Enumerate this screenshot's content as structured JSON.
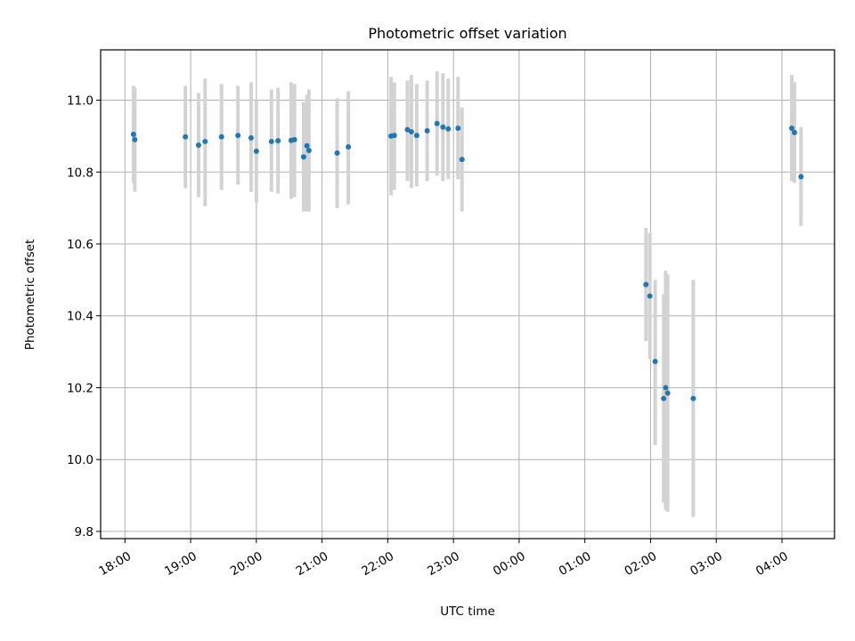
{
  "chart_data": {
    "type": "scatter",
    "title": "Photometric offset variation",
    "xlabel": "UTC time",
    "ylabel": "Photometric offset",
    "x_unit": "UTC hour",
    "x_ticks": [
      {
        "value": 18,
        "label": "18:00"
      },
      {
        "value": 19,
        "label": "19:00"
      },
      {
        "value": 20,
        "label": "20:00"
      },
      {
        "value": 21,
        "label": "21:00"
      },
      {
        "value": 22,
        "label": "22:00"
      },
      {
        "value": 23,
        "label": "23:00"
      },
      {
        "value": 24,
        "label": "00:00"
      },
      {
        "value": 25,
        "label": "01:00"
      },
      {
        "value": 26,
        "label": "02:00"
      },
      {
        "value": 27,
        "label": "03:00"
      },
      {
        "value": 28,
        "label": "04:00"
      }
    ],
    "y_ticks": [
      {
        "value": 9.8,
        "label": "9.8"
      },
      {
        "value": 10.0,
        "label": "10.0"
      },
      {
        "value": 10.2,
        "label": "10.2"
      },
      {
        "value": 10.4,
        "label": "10.4"
      },
      {
        "value": 10.6,
        "label": "10.6"
      },
      {
        "value": 10.8,
        "label": "10.8"
      },
      {
        "value": 11.0,
        "label": "11.0"
      }
    ],
    "xlim": [
      17.63,
      28.8
    ],
    "ylim": [
      9.78,
      11.14
    ],
    "grid": true,
    "marker_color": "#1f77b4",
    "errorbar_color": "#d3d3d3",
    "points": [
      {
        "x": 18.13,
        "y": 10.905,
        "lo": 10.77,
        "hi": 11.04
      },
      {
        "x": 18.15,
        "y": 10.89,
        "lo": 10.745,
        "hi": 11.035
      },
      {
        "x": 18.92,
        "y": 10.898,
        "lo": 10.755,
        "hi": 11.04
      },
      {
        "x": 19.12,
        "y": 10.875,
        "lo": 10.73,
        "hi": 11.02
      },
      {
        "x": 19.22,
        "y": 10.885,
        "lo": 10.705,
        "hi": 11.06
      },
      {
        "x": 19.47,
        "y": 10.898,
        "lo": 10.75,
        "hi": 11.045
      },
      {
        "x": 19.72,
        "y": 10.902,
        "lo": 10.765,
        "hi": 11.04
      },
      {
        "x": 19.92,
        "y": 10.895,
        "lo": 10.745,
        "hi": 11.05
      },
      {
        "x": 20.0,
        "y": 10.858,
        "lo": 10.715,
        "hi": 11.0
      },
      {
        "x": 20.23,
        "y": 10.885,
        "lo": 10.745,
        "hi": 11.03
      },
      {
        "x": 20.33,
        "y": 10.887,
        "lo": 10.74,
        "hi": 11.035
      },
      {
        "x": 20.53,
        "y": 10.888,
        "lo": 10.725,
        "hi": 11.05
      },
      {
        "x": 20.58,
        "y": 10.89,
        "lo": 10.73,
        "hi": 11.045
      },
      {
        "x": 20.72,
        "y": 10.842,
        "lo": 10.69,
        "hi": 10.995
      },
      {
        "x": 20.77,
        "y": 10.873,
        "lo": 10.69,
        "hi": 11.015
      },
      {
        "x": 20.8,
        "y": 10.86,
        "lo": 10.69,
        "hi": 11.03
      },
      {
        "x": 21.23,
        "y": 10.853,
        "lo": 10.7,
        "hi": 11.005
      },
      {
        "x": 21.4,
        "y": 10.87,
        "lo": 10.71,
        "hi": 11.025
      },
      {
        "x": 22.05,
        "y": 10.9,
        "lo": 10.735,
        "hi": 11.065
      },
      {
        "x": 22.1,
        "y": 10.902,
        "lo": 10.75,
        "hi": 11.05
      },
      {
        "x": 22.3,
        "y": 10.918,
        "lo": 10.775,
        "hi": 11.055
      },
      {
        "x": 22.36,
        "y": 10.912,
        "lo": 10.755,
        "hi": 11.07
      },
      {
        "x": 22.44,
        "y": 10.902,
        "lo": 10.76,
        "hi": 11.045
      },
      {
        "x": 22.6,
        "y": 10.915,
        "lo": 10.775,
        "hi": 11.055
      },
      {
        "x": 22.75,
        "y": 10.935,
        "lo": 10.79,
        "hi": 11.08
      },
      {
        "x": 22.84,
        "y": 10.925,
        "lo": 10.775,
        "hi": 11.075
      },
      {
        "x": 22.92,
        "y": 10.92,
        "lo": 10.78,
        "hi": 11.06
      },
      {
        "x": 23.07,
        "y": 10.922,
        "lo": 10.78,
        "hi": 11.065
      },
      {
        "x": 23.13,
        "y": 10.835,
        "lo": 10.69,
        "hi": 10.98
      },
      {
        "x": 25.93,
        "y": 10.487,
        "lo": 10.33,
        "hi": 10.645
      },
      {
        "x": 25.99,
        "y": 10.455,
        "lo": 10.28,
        "hi": 10.63
      },
      {
        "x": 26.07,
        "y": 10.273,
        "lo": 10.04,
        "hi": 10.5
      },
      {
        "x": 26.2,
        "y": 10.17,
        "lo": 9.88,
        "hi": 10.46
      },
      {
        "x": 26.23,
        "y": 10.2,
        "lo": 9.86,
        "hi": 10.525
      },
      {
        "x": 26.26,
        "y": 10.185,
        "lo": 9.855,
        "hi": 10.515
      },
      {
        "x": 26.65,
        "y": 10.17,
        "lo": 9.84,
        "hi": 10.5
      },
      {
        "x": 28.15,
        "y": 10.922,
        "lo": 10.775,
        "hi": 11.07
      },
      {
        "x": 28.19,
        "y": 10.91,
        "lo": 10.77,
        "hi": 11.05
      },
      {
        "x": 28.29,
        "y": 10.787,
        "lo": 10.65,
        "hi": 10.925
      }
    ]
  }
}
